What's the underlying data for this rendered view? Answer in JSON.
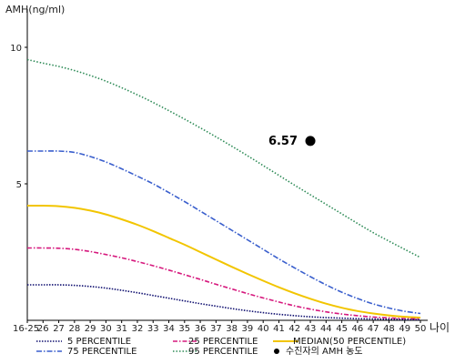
{
  "chart_data": {
    "type": "line",
    "ylabel": "AMH(ng/ml)",
    "xlabel": "나이",
    "ylim": [
      0,
      11
    ],
    "yticks": [
      5,
      10
    ],
    "x_categories": [
      "16-25",
      "26",
      "27",
      "28",
      "29",
      "30",
      "31",
      "32",
      "33",
      "34",
      "35",
      "36",
      "37",
      "38",
      "39",
      "40",
      "41",
      "42",
      "43",
      "44",
      "45",
      "46",
      "47",
      "48",
      "49",
      "50"
    ],
    "series": [
      {
        "name": "95 PERCENTILE",
        "color": "#2e8b57",
        "dash": "1.5,2",
        "values": [
          9.55,
          9.42,
          9.3,
          9.15,
          8.97,
          8.76,
          8.52,
          8.26,
          7.98,
          7.68,
          7.37,
          7.05,
          6.72,
          6.38,
          6.03,
          5.67,
          5.31,
          4.95,
          4.6,
          4.25,
          3.9,
          3.55,
          3.21,
          2.9,
          2.6,
          2.3
        ]
      },
      {
        "name": "75 PERCENTILE",
        "color": "#3a5fcd",
        "dash": "6,2,1.5,2",
        "values": [
          6.2,
          6.2,
          6.2,
          6.15,
          6.0,
          5.8,
          5.55,
          5.28,
          5.0,
          4.68,
          4.35,
          4.0,
          3.65,
          3.3,
          2.95,
          2.6,
          2.25,
          1.92,
          1.6,
          1.3,
          1.03,
          0.8,
          0.6,
          0.45,
          0.33,
          0.25
        ]
      },
      {
        "name": "MEDIAN(50 PERCENTILE)",
        "color": "#f2c500",
        "dash": "",
        "values": [
          4.2,
          4.2,
          4.18,
          4.12,
          4.02,
          3.88,
          3.7,
          3.5,
          3.27,
          3.02,
          2.77,
          2.5,
          2.23,
          1.96,
          1.7,
          1.45,
          1.21,
          0.99,
          0.79,
          0.61,
          0.46,
          0.34,
          0.25,
          0.18,
          0.13,
          0.1
        ]
      },
      {
        "name": "25 PERCENTILE",
        "color": "#d6187d",
        "dash": "5,2,1.5,2",
        "values": [
          2.65,
          2.65,
          2.64,
          2.6,
          2.52,
          2.41,
          2.29,
          2.15,
          2.0,
          1.84,
          1.67,
          1.5,
          1.32,
          1.15,
          0.98,
          0.82,
          0.67,
          0.53,
          0.41,
          0.31,
          0.23,
          0.17,
          0.12,
          0.09,
          0.06,
          0.05
        ]
      },
      {
        "name": "5 PERCENTILE",
        "color": "#101070",
        "dash": "1.5,1.5",
        "values": [
          1.3,
          1.3,
          1.3,
          1.28,
          1.24,
          1.18,
          1.1,
          1.01,
          0.91,
          0.81,
          0.71,
          0.61,
          0.52,
          0.43,
          0.35,
          0.28,
          0.22,
          0.17,
          0.13,
          0.1,
          0.08,
          0.06,
          0.05,
          0.04,
          0.03,
          0.02
        ]
      }
    ],
    "marker": {
      "x": "43",
      "y": 6.57,
      "label": "6.57",
      "color": "#000000"
    },
    "legend": [
      {
        "label": "5 PERCENTILE",
        "ref": 4
      },
      {
        "label": "25 PERCENTILE",
        "ref": 3
      },
      {
        "label": "MEDIAN(50 PERCENTILE)",
        "ref": 2
      },
      {
        "label": "75 PERCENTILE",
        "ref": 1
      },
      {
        "label": "95 PERCENTILE",
        "ref": 0
      },
      {
        "label": "수진자의 AMH 농도",
        "marker": true
      }
    ],
    "legend_position": "bottom"
  }
}
